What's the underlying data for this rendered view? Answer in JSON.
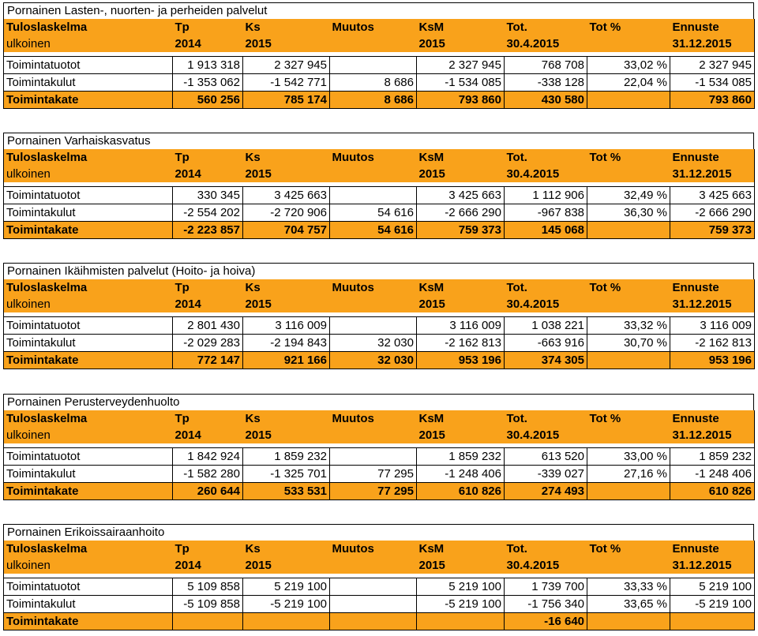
{
  "header_labels": {
    "tuloslaskelma": "Tuloslaskelma",
    "ulkoinen": "ulkoinen",
    "tp": "Tp",
    "tp_year": "2014",
    "ks": "Ks",
    "ks_year": "2015",
    "muutos": "Muutos",
    "ksm": "KsM",
    "ksm_year": "2015",
    "tot": "Tot.",
    "tot_date": "30.4.2015",
    "tot_pct": "Tot %",
    "ennuste": "Ennuste",
    "ennuste_date": "31.12.2015"
  },
  "sections": [
    {
      "title": "Pornainen Lasten-, nuorten- ja perheiden palvelut",
      "rows": [
        [
          "Toimintatuotot",
          "1 913 318",
          "2 327 945",
          "",
          "2 327 945",
          "768 708",
          "33,02 %",
          "2 327 945"
        ],
        [
          "Toimintakulut",
          "-1 353 062",
          "-1 542 771",
          "8 686",
          "-1 534 085",
          "-338 128",
          "22,04 %",
          "-1 534 085"
        ],
        [
          "Toimintakate",
          "560 256",
          "785 174",
          "8 686",
          "793 860",
          "430 580",
          "",
          "793 860"
        ]
      ]
    },
    {
      "title": "Pornainen Varhaiskasvatus",
      "rows": [
        [
          "Toimintatuotot",
          "330 345",
          "3 425 663",
          "",
          "3 425 663",
          "1 112 906",
          "32,49 %",
          "3 425 663"
        ],
        [
          "Toimintakulut",
          "-2 554 202",
          "-2 720 906",
          "54 616",
          "-2 666 290",
          "-967 838",
          "36,30 %",
          "-2 666 290"
        ],
        [
          "Toimintakate",
          "-2 223 857",
          "704 757",
          "54 616",
          "759 373",
          "145 068",
          "",
          "759 373"
        ]
      ]
    },
    {
      "title": "Pornainen Ikäihmisten palvelut (Hoito- ja hoiva)",
      "rows": [
        [
          "Toimintatuotot",
          "2 801 430",
          "3 116 009",
          "",
          "3 116 009",
          "1 038 221",
          "33,32 %",
          "3 116 009"
        ],
        [
          "Toimintakulut",
          "-2 029 283",
          "-2 194 843",
          "32 030",
          "-2 162 813",
          "-663 916",
          "30,70 %",
          "-2 162 813"
        ],
        [
          "Toimintakate",
          "772 147",
          "921 166",
          "32 030",
          "953 196",
          "374 305",
          "",
          "953 196"
        ]
      ]
    },
    {
      "title": "Pornainen Perusterveydenhuolto",
      "rows": [
        [
          "Toimintatuotot",
          "1 842 924",
          "1 859 232",
          "",
          "1 859 232",
          "613 520",
          "33,00 %",
          "1 859 232"
        ],
        [
          "Toimintakulut",
          "-1 582 280",
          "-1 325 701",
          "77 295",
          "-1 248 406",
          "-339 027",
          "27,16 %",
          "-1 248 406"
        ],
        [
          "Toimintakate",
          "260 644",
          "533 531",
          "77 295",
          "610 826",
          "274 493",
          "",
          "610 826"
        ]
      ]
    },
    {
      "title": "Pornainen Erikoissairaanhoito",
      "rows": [
        [
          "Toimintatuotot",
          "5 109 858",
          "5 219 100",
          "",
          "5 219 100",
          "1 739 700",
          "33,33 %",
          "5 219 100"
        ],
        [
          "Toimintakulut",
          "-5 109 858",
          "-5 219 100",
          "",
          "-5 219 100",
          "-1 756 340",
          "33,65 %",
          "-5 219 100"
        ],
        [
          "Toimintakate",
          "",
          "",
          "",
          "",
          "-16 640",
          "",
          ""
        ]
      ]
    }
  ],
  "colors": {
    "header_bg": "#f9a21b",
    "total_bg": "#f9a21b"
  }
}
